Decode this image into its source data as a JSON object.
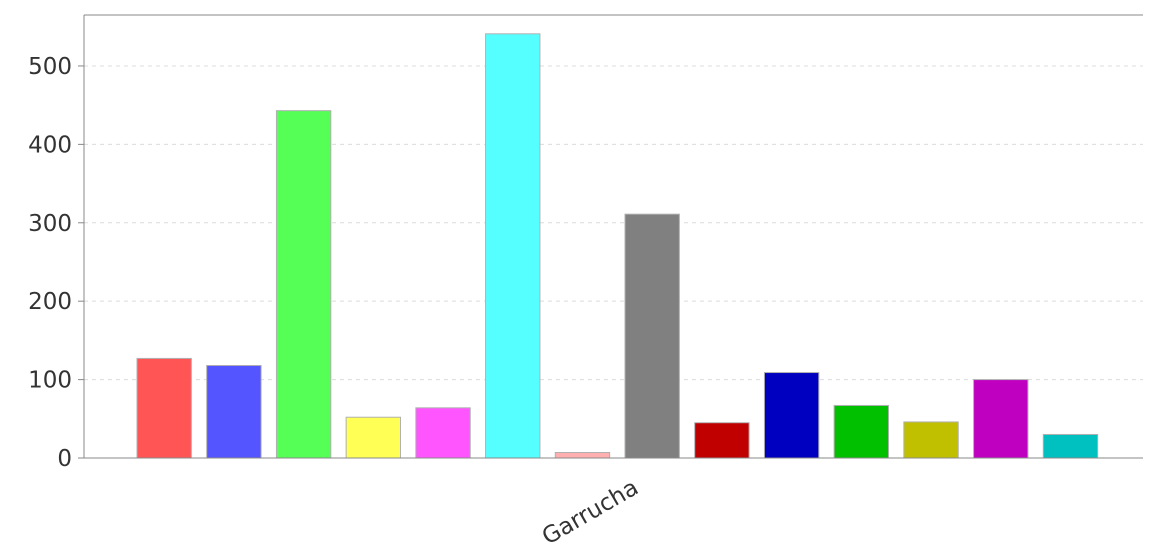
{
  "chart_data": {
    "type": "bar",
    "categories": [
      "Garrucha"
    ],
    "series": [
      {
        "values": [
          127
        ],
        "color": "#ff5555"
      },
      {
        "values": [
          118
        ],
        "color": "#5555ff"
      },
      {
        "values": [
          443
        ],
        "color": "#55ff55"
      },
      {
        "values": [
          52
        ],
        "color": "#ffff55"
      },
      {
        "values": [
          64
        ],
        "color": "#ff55ff"
      },
      {
        "values": [
          541
        ],
        "color": "#55ffff"
      },
      {
        "values": [
          7
        ],
        "color": "#ffafaf"
      },
      {
        "values": [
          311
        ],
        "color": "#808080"
      },
      {
        "values": [
          45
        ],
        "color": "#c00000"
      },
      {
        "values": [
          109
        ],
        "color": "#0000c0"
      },
      {
        "values": [
          67
        ],
        "color": "#00c000"
      },
      {
        "values": [
          46
        ],
        "color": "#c0c000"
      },
      {
        "values": [
          100
        ],
        "color": "#c000c0"
      },
      {
        "values": [
          30
        ],
        "color": "#00c0c0"
      }
    ],
    "title": "",
    "xlabel": "",
    "ylabel": "",
    "ylim": [
      0,
      565
    ],
    "yticks": [
      0,
      100,
      200,
      300,
      400,
      500
    ],
    "grid": true,
    "legend": "none"
  }
}
